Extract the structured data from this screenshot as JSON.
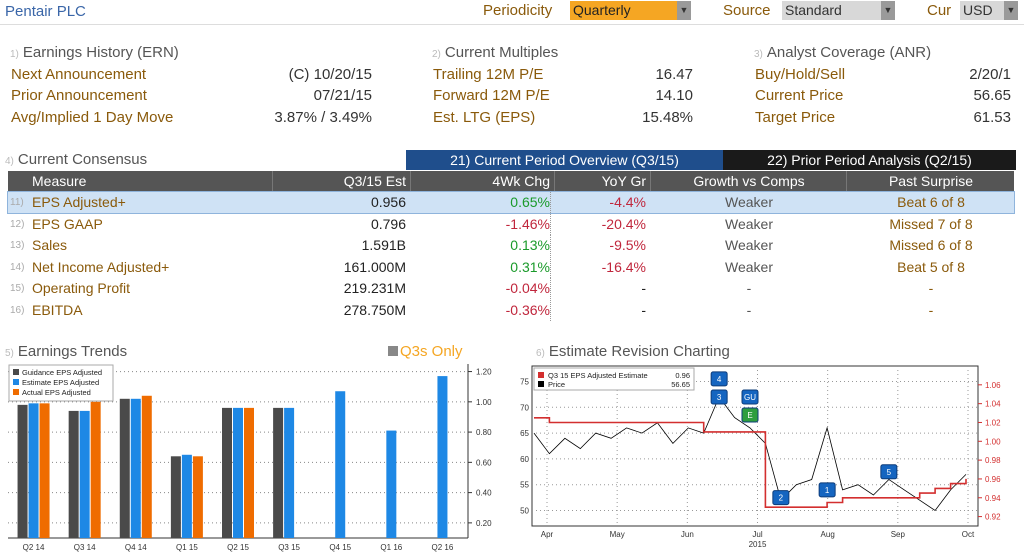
{
  "header": {
    "company": "Pentair PLC",
    "periodicity_label": "Periodicity",
    "periodicity_value": "Quarterly",
    "source_label": "Source",
    "source_value": "Standard",
    "cur_label": "Cur",
    "cur_value": "USD"
  },
  "earnings_history": {
    "num": "1)",
    "title": "Earnings History (ERN)",
    "rows": [
      {
        "label": "Next Announcement",
        "value": "(C)  10/20/15"
      },
      {
        "label": "Prior Announcement",
        "value": "07/21/15"
      },
      {
        "label": "Avg/Implied 1 Day Move",
        "value": "3.87% / 3.49%"
      }
    ]
  },
  "current_multiples": {
    "num": "2)",
    "title": "Current Multiples",
    "rows": [
      {
        "label": "Trailing 12M P/E",
        "value": "16.47"
      },
      {
        "label": "Forward 12M P/E",
        "value": "14.10"
      },
      {
        "label": "Est. LTG (EPS)",
        "value": "15.48%"
      }
    ]
  },
  "analyst_coverage": {
    "num": "3)",
    "title": "Analyst Coverage (ANR)",
    "rows": [
      {
        "label": "Buy/Hold/Sell",
        "value": "2/20/1"
      },
      {
        "label": "Current Price",
        "value": "56.65"
      },
      {
        "label": "Target Price",
        "value": "61.53"
      }
    ]
  },
  "consensus": {
    "num": "4)",
    "title": "Current Consensus",
    "tab_current": "21) Current Period Overview (Q3/15)",
    "tab_prior": "22) Prior Period Analysis (Q2/15)",
    "columns": [
      "Measure",
      "Q3/15 Est",
      "4Wk Chg",
      "YoY Gr",
      "Growth vs Comps",
      "Past Surprise"
    ],
    "rows": [
      {
        "num": "11)",
        "measure": "EPS Adjusted+",
        "est": "0.956",
        "chg": "0.65%",
        "yoy": "-4.4%",
        "comps": "Weaker",
        "surprise": "Beat 6 of 8"
      },
      {
        "num": "12)",
        "measure": "EPS GAAP",
        "est": "0.796",
        "chg": "-1.46%",
        "yoy": "-20.4%",
        "comps": "Weaker",
        "surprise": "Missed 7 of 8"
      },
      {
        "num": "13)",
        "measure": "Sales",
        "est": "1.591B",
        "chg": "0.13%",
        "yoy": "-9.5%",
        "comps": "Weaker",
        "surprise": "Missed 6 of 8"
      },
      {
        "num": "14)",
        "measure": "Net Income Adjusted+",
        "est": "161.000M",
        "chg": "0.31%",
        "yoy": "-16.4%",
        "comps": "Weaker",
        "surprise": "Beat 5 of 8"
      },
      {
        "num": "15)",
        "measure": "Operating Profit",
        "est": "219.231M",
        "chg": "-0.04%",
        "yoy": "-",
        "comps": "-",
        "surprise": "-"
      },
      {
        "num": "16)",
        "measure": "EBITDA",
        "est": "278.750M",
        "chg": "-0.36%",
        "yoy": "-",
        "comps": "-",
        "surprise": "-"
      }
    ]
  },
  "trends": {
    "num": "5)",
    "title": "Earnings Trends",
    "q3s_only": "Q3s Only"
  },
  "revision": {
    "num": "6)",
    "title": "Estimate Revision Charting"
  },
  "colors": {
    "guidance": "#4a4a4a",
    "estimate": "#1e88e5",
    "actual": "#ef6c00",
    "price": "#000000",
    "est_line": "#d32f2f"
  },
  "chart_data": [
    {
      "type": "bar",
      "categories": [
        "Q2 14",
        "Q3 14",
        "Q4 14",
        "Q1 15",
        "Q2 15",
        "Q3 15",
        "Q4 15",
        "Q1 16",
        "Q2 16"
      ],
      "series": [
        {
          "name": "Guidance EPS Adjusted",
          "values": [
            0.98,
            0.94,
            1.02,
            0.64,
            0.96,
            0.96,
            null,
            null,
            null
          ]
        },
        {
          "name": "Estimate EPS Adjusted",
          "values": [
            0.99,
            0.94,
            1.02,
            0.65,
            0.96,
            0.96,
            1.07,
            0.81,
            1.17
          ]
        },
        {
          "name": "Actual EPS Adjusted",
          "values": [
            0.99,
            1.0,
            1.04,
            0.64,
            0.96,
            null,
            null,
            null,
            null
          ]
        }
      ],
      "ylim": [
        0.1,
        1.25
      ],
      "yticks": [
        "0.20",
        "0.40",
        "0.60",
        "0.80",
        "1.00",
        "1.20"
      ],
      "legend": "top-left",
      "grid": true
    },
    {
      "type": "line",
      "x_labels": [
        "Apr",
        "May",
        "Jun",
        "Jul",
        "Aug",
        "Sep",
        "Oct"
      ],
      "x_sublabel": "2015",
      "series": [
        {
          "name": "Q3 15 EPS Adjusted Estimate",
          "last": "0.96",
          "axis": "right",
          "values": [
            1.025,
            1.02,
            1.02,
            1.02,
            1.02,
            1.02,
            1.02,
            1.02,
            1.02,
            1.02,
            1.02,
            1.01,
            1.01,
            1.01,
            1.01,
            0.93,
            0.93,
            0.93,
            0.93,
            0.935,
            0.94,
            0.94,
            0.94,
            0.94,
            0.94,
            0.945,
            0.95,
            0.955,
            0.96
          ]
        },
        {
          "name": "Price",
          "last": "56.65",
          "axis": "left",
          "values": [
            65,
            61,
            64,
            62,
            65,
            64,
            66,
            65,
            67,
            63,
            66,
            65,
            72,
            68,
            66,
            63,
            52,
            55,
            56,
            66,
            54,
            55,
            53,
            56,
            54,
            52,
            50,
            54,
            57
          ]
        }
      ],
      "ylim_left": [
        47,
        78
      ],
      "yticks_left": [
        "50",
        "55",
        "60",
        "65",
        "70",
        "75"
      ],
      "ylim_right": [
        0.91,
        1.08
      ],
      "yticks_right": [
        "0.92",
        "0.94",
        "0.96",
        "0.98",
        "1.00",
        "1.02",
        "1.04",
        "1.06"
      ],
      "legend": "top-left",
      "grid": true
    }
  ],
  "markers": [
    {
      "label": "4",
      "color": "#1565c0"
    },
    {
      "label": "3",
      "color": "#1565c0"
    },
    {
      "label": "GU",
      "color": "#1565c0"
    },
    {
      "label": "E",
      "color": "#2e9e3e"
    },
    {
      "label": "2",
      "color": "#1565c0"
    },
    {
      "label": "1",
      "color": "#1565c0"
    },
    {
      "label": "5",
      "color": "#1565c0"
    }
  ]
}
